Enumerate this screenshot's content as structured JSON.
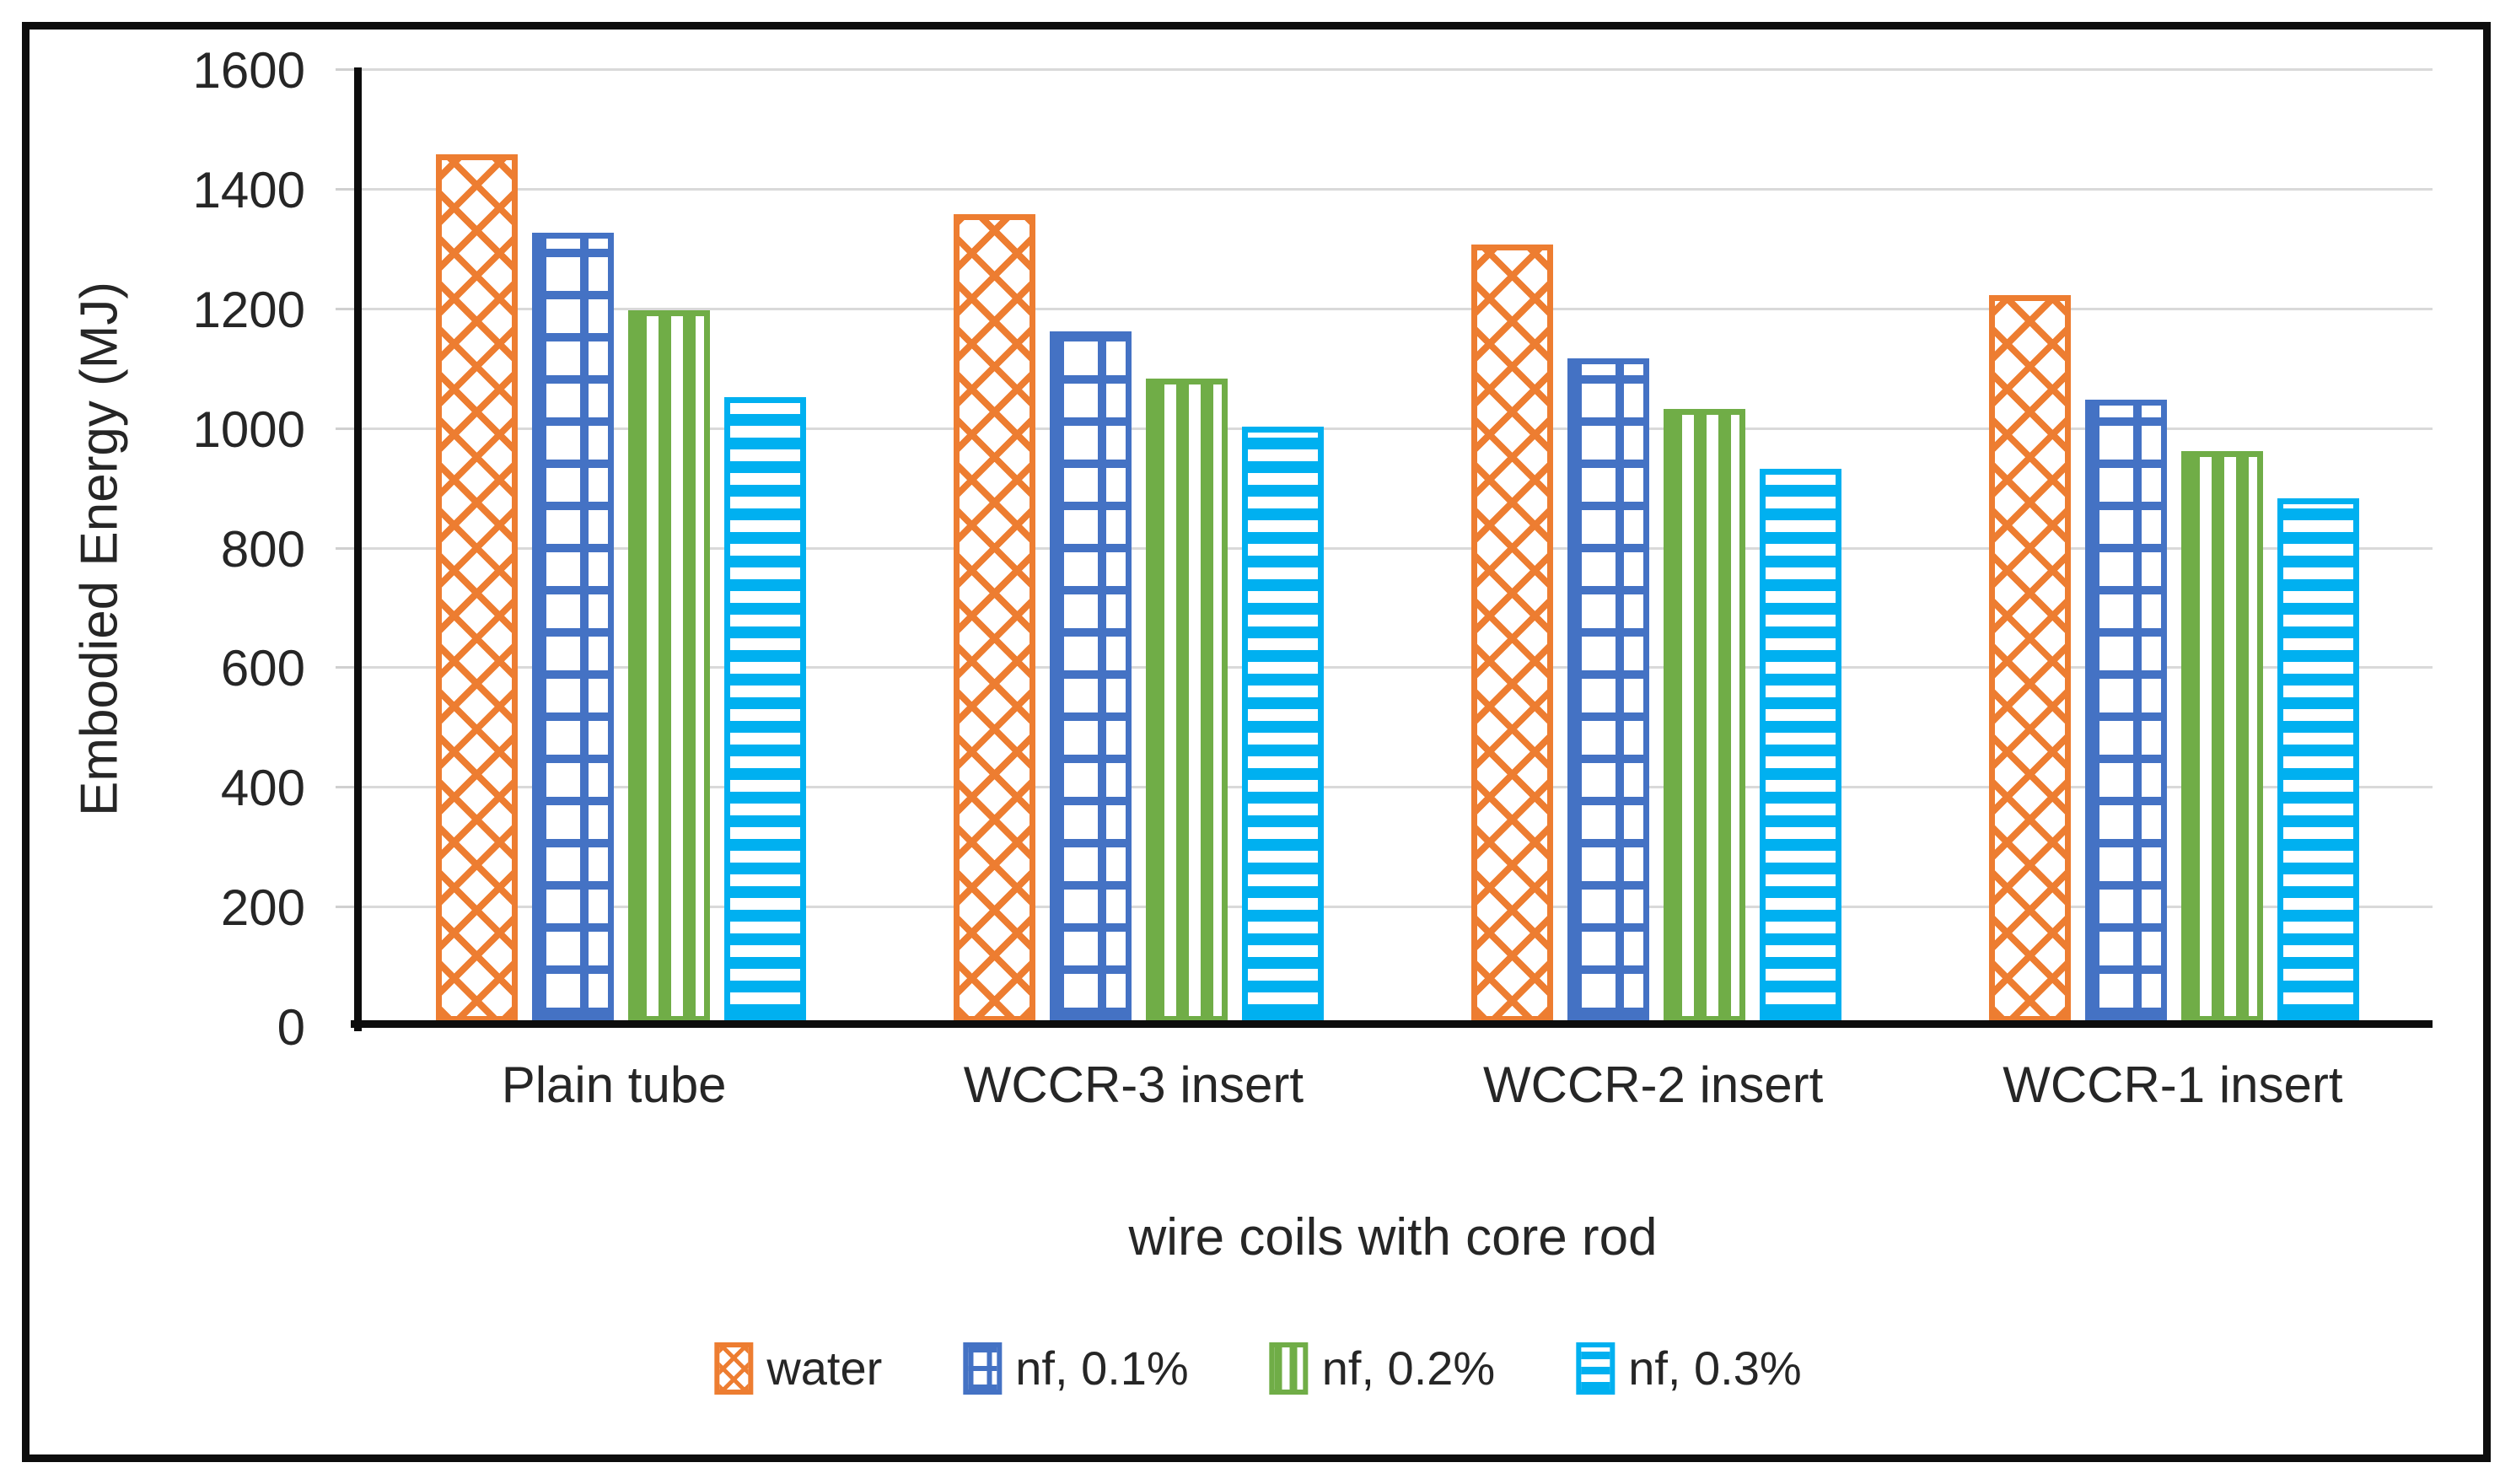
{
  "chart_data": {
    "type": "bar",
    "title": "",
    "categories": [
      "Plain tube",
      "WCCR-3 insert",
      "WCCR-2 insert",
      "WCCR-1 insert"
    ],
    "series": [
      {
        "name": "water",
        "color": "#ED7D31",
        "pattern": "diagonal-crosshatch",
        "values": [
          1450,
          1350,
          1300,
          1215
        ]
      },
      {
        "name": "nf, 0.1%",
        "color": "#4472C4",
        "pattern": "grid",
        "values": [
          1320,
          1155,
          1110,
          1040
        ]
      },
      {
        "name": "nf, 0.2%",
        "color": "#70AD47",
        "pattern": "vertical-stripes",
        "values": [
          1190,
          1075,
          1025,
          955
        ]
      },
      {
        "name": "nf, 0.3%",
        "color": "#00B0F0",
        "pattern": "horizontal-stripes",
        "values": [
          1045,
          995,
          925,
          875
        ]
      }
    ],
    "xlabel": "wire coils with core rod",
    "ylabel": "Embodied Energy (MJ)",
    "ylim": [
      0,
      1600
    ],
    "ytick_step": 200,
    "yticks": [
      "0",
      "200",
      "400",
      "600",
      "800",
      "1000",
      "1200",
      "1400",
      "1600"
    ],
    "grid": true,
    "gridline_color": "#D9D9D9",
    "axis_color": "#0D0D0D",
    "text_color": "#262626",
    "legend_position": "bottom"
  }
}
